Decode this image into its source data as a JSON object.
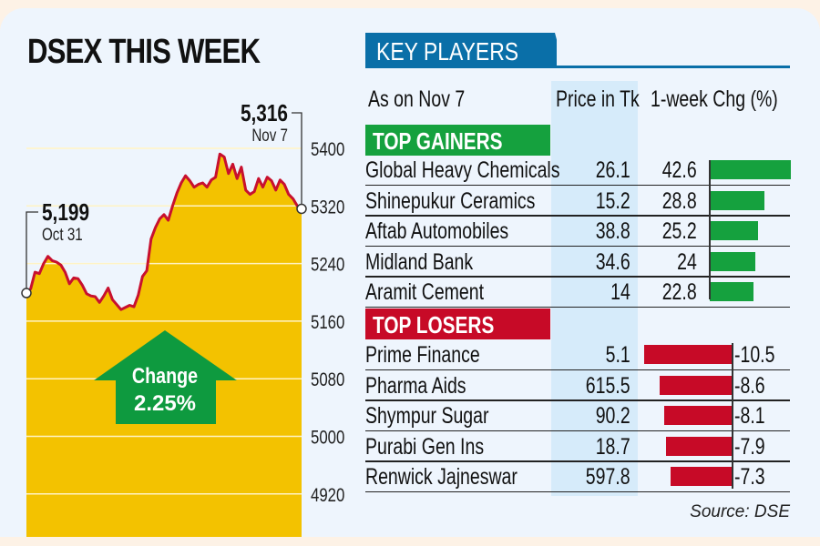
{
  "colors": {
    "background": "#eef5fd",
    "outer": "#fdf2e6",
    "area_fill": "#f3c200",
    "line": "#c8102e",
    "arrow": "#0e9a3f",
    "gainer_bar": "#15a13e",
    "loser_bar": "#c70a27",
    "key_players_tab": "#0a6fa8",
    "price_column": "#d6ebfa"
  },
  "chart_data": {
    "type": "area",
    "title": "DSEX THIS WEEK",
    "xlabel": "",
    "ylabel": "",
    "ylim": [
      4920,
      5440
    ],
    "grid": true,
    "y_ticks": [
      "5400",
      "5320",
      "5240",
      "5160",
      "5080",
      "5000",
      "4920"
    ],
    "y_tick_values": [
      5400,
      5320,
      5240,
      5160,
      5080,
      5000,
      4920
    ],
    "start": {
      "value": "5,199",
      "date": "Oct 31",
      "numeric": 5199
    },
    "end": {
      "value": "5,316",
      "date": "Nov 7",
      "numeric": 5316
    },
    "change": {
      "label": "Change",
      "value": "2.25%"
    },
    "series": [
      {
        "name": "DSEX",
        "values": [
          5199,
          5205,
          5228,
          5226,
          5240,
          5250,
          5244,
          5242,
          5238,
          5228,
          5212,
          5220,
          5219,
          5210,
          5198,
          5195,
          5194,
          5186,
          5195,
          5206,
          5190,
          5183,
          5176,
          5179,
          5182,
          5180,
          5196,
          5222,
          5230,
          5274,
          5290,
          5302,
          5308,
          5300,
          5320,
          5338,
          5352,
          5362,
          5355,
          5346,
          5350,
          5352,
          5346,
          5356,
          5360,
          5392,
          5388,
          5365,
          5378,
          5358,
          5374,
          5342,
          5336,
          5340,
          5358,
          5346,
          5360,
          5355,
          5342,
          5356,
          5350,
          5336,
          5330,
          5320,
          5316
        ]
      }
    ]
  },
  "key_players": {
    "title": "KEY PLAYERS",
    "as_on": "As on Nov 7",
    "price_header": "Price in Tk",
    "change_header": "1-week Chg (%)",
    "source": "Source: DSE",
    "gainers_label": "TOP GAINERS",
    "losers_label": "TOP LOSERS",
    "gainers": [
      {
        "name": "Global Heavy Chemicals",
        "price": "26.1",
        "change": "42.6",
        "change_value": 42.6
      },
      {
        "name": "Shinepukur Ceramics",
        "price": "15.2",
        "change": "28.8",
        "change_value": 28.8
      },
      {
        "name": "Aftab Automobiles",
        "price": "38.8",
        "change": "25.2",
        "change_value": 25.2
      },
      {
        "name": "Midland Bank",
        "price": "34.6",
        "change": "24",
        "change_value": 24
      },
      {
        "name": "Aramit Cement",
        "price": "14",
        "change": "22.8",
        "change_value": 22.8
      }
    ],
    "losers": [
      {
        "name": "Prime Finance",
        "price": "5.1",
        "change": "-10.5",
        "change_value": -10.5
      },
      {
        "name": "Pharma Aids",
        "price": "615.5",
        "change": "-8.6",
        "change_value": -8.6
      },
      {
        "name": "Shympur Sugar",
        "price": "90.2",
        "change": "-8.1",
        "change_value": -8.1
      },
      {
        "name": "Purabi Gen Ins",
        "price": "18.7",
        "change": "-7.9",
        "change_value": -7.9
      },
      {
        "name": "Renwick Jajneswar",
        "price": "597.8",
        "change": "-7.3",
        "change_value": -7.3
      }
    ]
  }
}
